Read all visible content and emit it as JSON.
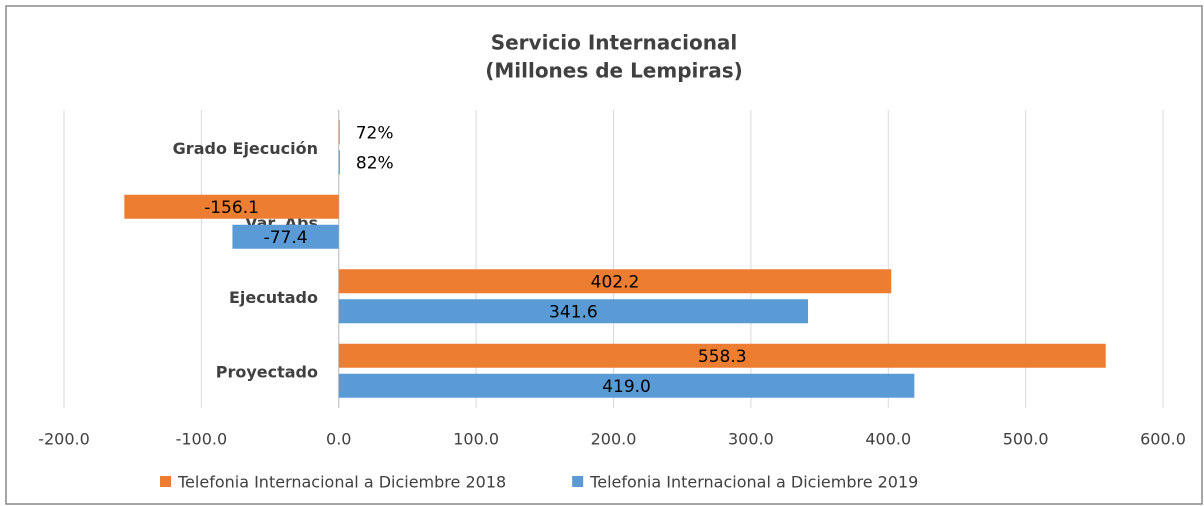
{
  "chart_data": {
    "type": "hbar",
    "title": "Servicio Internacional",
    "subtitle": "(Millones de Lempiras)",
    "categories": [
      "Grado Ejecución",
      "Var. Abs",
      "Ejecutado",
      "Proyectado"
    ],
    "series": [
      {
        "name": "Telefonia Internacional a Diciembre 2018",
        "color": "#ed7d31",
        "values": [
          0.72,
          -156.1,
          402.2,
          558.3
        ],
        "value_labels": [
          "72%",
          "-156.1",
          "402.2",
          "558.3"
        ]
      },
      {
        "name": "Telefonia Internacional a Diciembre 2019",
        "color": "#5b9bd5",
        "values": [
          0.82,
          -77.4,
          341.6,
          419.0
        ],
        "value_labels": [
          "82%",
          "-77.4",
          "341.6",
          "419.0"
        ]
      }
    ],
    "xlim": [
      -200,
      600
    ],
    "xticks": [
      {
        "value": -200,
        "label": "-200.0"
      },
      {
        "value": -100,
        "label": "-100.0"
      },
      {
        "value": 0,
        "label": "0.0"
      },
      {
        "value": 100,
        "label": "100.0"
      },
      {
        "value": 200,
        "label": "200.0"
      },
      {
        "value": 300,
        "label": "300.0"
      },
      {
        "value": 400,
        "label": "400.0"
      },
      {
        "value": 500,
        "label": "500.0"
      },
      {
        "value": 600,
        "label": "600.0"
      }
    ],
    "grid": true,
    "legend": "bottom"
  }
}
